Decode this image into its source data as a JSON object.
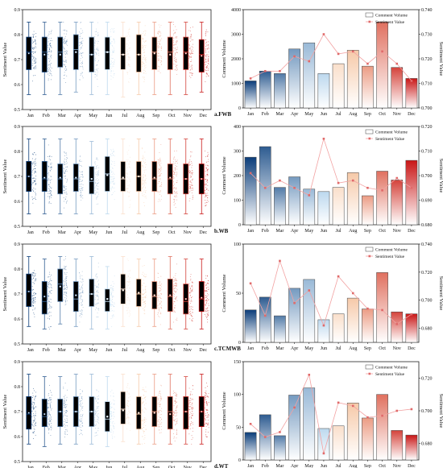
{
  "colors": {
    "blue_dark": "#0b3d7a",
    "blue_light": "#bcd8ee",
    "peach": "#f6c9a8",
    "red_dark": "#c91616",
    "red_light": "#f4b5b0",
    "sentiment_line": "#f2a2a2",
    "sentiment_marker": "#e06a6a",
    "bar_outline": "#444444"
  },
  "months": [
    "Jan",
    "Feb",
    "Mar",
    "Apr",
    "May",
    "Jun",
    "Jul",
    "Aug",
    "Sep",
    "Oct",
    "Nov",
    "Dec"
  ],
  "box_ylabel": "Sentiment Value",
  "volume_ylabel": "Comment Volume",
  "sentiment_ylabel": "Sentiment Value",
  "legend": {
    "volume": "Comment Volume",
    "sentiment": "Sentiment Value"
  },
  "chart_data": [
    {
      "type": "box",
      "ylabel": "Sentiment Value",
      "ylim": [
        0.5,
        0.9
      ],
      "yticks": [
        0.5,
        0.6,
        0.7,
        0.8,
        0.9
      ],
      "categories": [
        "Jan",
        "Feb",
        "Mar",
        "Apr",
        "May",
        "Jun",
        "Jul",
        "Aug",
        "Sep",
        "Oct",
        "Nov",
        "Dec"
      ],
      "boxes": [
        {
          "min": 0.56,
          "q1": 0.66,
          "median": 0.73,
          "q3": 0.79,
          "max": 0.85,
          "mean": 0.725
        },
        {
          "min": 0.56,
          "q1": 0.65,
          "median": 0.73,
          "q3": 0.79,
          "max": 0.85,
          "mean": 0.72
        },
        {
          "min": 0.56,
          "q1": 0.67,
          "median": 0.73,
          "q3": 0.79,
          "max": 0.85,
          "mean": 0.72
        },
        {
          "min": 0.57,
          "q1": 0.66,
          "median": 0.74,
          "q3": 0.8,
          "max": 0.85,
          "mean": 0.73
        },
        {
          "min": 0.56,
          "q1": 0.65,
          "median": 0.72,
          "q3": 0.79,
          "max": 0.85,
          "mean": 0.72
        },
        {
          "min": 0.56,
          "q1": 0.66,
          "median": 0.73,
          "q3": 0.79,
          "max": 0.85,
          "mean": 0.73
        },
        {
          "min": 0.55,
          "q1": 0.66,
          "median": 0.72,
          "q3": 0.79,
          "max": 0.85,
          "mean": 0.72
        },
        {
          "min": 0.56,
          "q1": 0.65,
          "median": 0.72,
          "q3": 0.8,
          "max": 0.85,
          "mean": 0.72
        },
        {
          "min": 0.56,
          "q1": 0.66,
          "median": 0.73,
          "q3": 0.79,
          "max": 0.85,
          "mean": 0.725
        },
        {
          "min": 0.56,
          "q1": 0.66,
          "median": 0.73,
          "q3": 0.79,
          "max": 0.85,
          "mean": 0.72
        },
        {
          "min": 0.56,
          "q1": 0.66,
          "median": 0.73,
          "q3": 0.79,
          "max": 0.85,
          "mean": 0.725
        },
        {
          "min": 0.57,
          "q1": 0.65,
          "median": 0.72,
          "q3": 0.78,
          "max": 0.85,
          "mean": 0.715
        }
      ]
    },
    {
      "type": "bar+line",
      "panel_label": "a.FWB",
      "categories": [
        "Jan",
        "Feb",
        "Mar",
        "Apr",
        "May",
        "Jun",
        "Jul",
        "Aug",
        "Sep",
        "Oct",
        "Nov",
        "Dec"
      ],
      "volume_values": [
        1100,
        1500,
        1400,
        2400,
        2650,
        1400,
        1800,
        2350,
        1700,
        3500,
        1650,
        1200
      ],
      "sentiment_values": [
        0.712,
        0.715,
        0.715,
        0.721,
        0.719,
        0.73,
        0.722,
        0.723,
        0.718,
        0.723,
        0.718,
        0.711
      ],
      "ylim_left": [
        0,
        4000
      ],
      "yticks_left": [
        0,
        1000,
        2000,
        3000,
        4000
      ],
      "ylim_right": [
        0.7,
        0.74
      ],
      "yticks_right": [
        "0.700",
        "0.710",
        "0.720",
        "0.730",
        "0.740"
      ],
      "ylabel_left": "Comment Volume",
      "ylabel_right": "Sentiment Value"
    },
    {
      "type": "box",
      "ylabel": "Sentiment Value",
      "ylim": [
        0.5,
        0.9
      ],
      "yticks": [
        0.5,
        0.6,
        0.7,
        0.8,
        0.9
      ],
      "categories": [
        "Jan",
        "Feb",
        "Mar",
        "Apr",
        "May",
        "Jun",
        "Jul",
        "Aug",
        "Sep",
        "Oct",
        "Nov",
        "Dec"
      ],
      "boxes": [
        {
          "min": 0.55,
          "q1": 0.64,
          "median": 0.7,
          "q3": 0.76,
          "max": 0.85,
          "mean": 0.7
        },
        {
          "min": 0.55,
          "q1": 0.64,
          "median": 0.69,
          "q3": 0.76,
          "max": 0.85,
          "mean": 0.695
        },
        {
          "min": 0.55,
          "q1": 0.63,
          "median": 0.69,
          "q3": 0.75,
          "max": 0.85,
          "mean": 0.695
        },
        {
          "min": 0.55,
          "q1": 0.64,
          "median": 0.69,
          "q3": 0.75,
          "max": 0.85,
          "mean": 0.695
        },
        {
          "min": 0.55,
          "q1": 0.63,
          "median": 0.68,
          "q3": 0.74,
          "max": 0.84,
          "mean": 0.69
        },
        {
          "min": 0.55,
          "q1": 0.64,
          "median": 0.71,
          "q3": 0.78,
          "max": 0.85,
          "mean": 0.705
        },
        {
          "min": 0.55,
          "q1": 0.64,
          "median": 0.69,
          "q3": 0.76,
          "max": 0.85,
          "mean": 0.695
        },
        {
          "min": 0.55,
          "q1": 0.64,
          "median": 0.7,
          "q3": 0.76,
          "max": 0.85,
          "mean": 0.7
        },
        {
          "min": 0.55,
          "q1": 0.64,
          "median": 0.69,
          "q3": 0.76,
          "max": 0.85,
          "mean": 0.695
        },
        {
          "min": 0.55,
          "q1": 0.63,
          "median": 0.69,
          "q3": 0.75,
          "max": 0.85,
          "mean": 0.695
        },
        {
          "min": 0.55,
          "q1": 0.63,
          "median": 0.69,
          "q3": 0.75,
          "max": 0.85,
          "mean": 0.69
        },
        {
          "min": 0.55,
          "q1": 0.63,
          "median": 0.69,
          "q3": 0.75,
          "max": 0.85,
          "mean": 0.69
        }
      ]
    },
    {
      "type": "bar+line",
      "panel_label": "b.WB",
      "categories": [
        "Jan",
        "Feb",
        "Mar",
        "Apr",
        "May",
        "Jun",
        "Jul",
        "Aug",
        "Sep",
        "Oct",
        "Nov",
        "Dec"
      ],
      "volume_values": [
        275,
        318,
        152,
        195,
        145,
        135,
        152,
        212,
        118,
        218,
        182,
        262
      ],
      "sentiment_values": [
        0.701,
        0.695,
        0.698,
        0.695,
        0.692,
        0.715,
        0.697,
        0.698,
        0.695,
        0.694,
        0.699,
        0.695
      ],
      "ylim_left": [
        0,
        400
      ],
      "yticks_left": [
        0,
        100,
        200,
        300,
        400
      ],
      "ylim_right": [
        0.68,
        0.72
      ],
      "yticks_right": [
        "0.680",
        "0.690",
        "0.700",
        "0.710",
        "0.720"
      ],
      "ylabel_left": "Comment Volume",
      "ylabel_right": "Sentiment Value"
    },
    {
      "type": "box",
      "ylabel": "Sentiment Value",
      "ylim": [
        0.5,
        0.9
      ],
      "yticks": [
        0.5,
        0.6,
        0.7,
        0.8,
        0.9
      ],
      "categories": [
        "Jan",
        "Feb",
        "Mar",
        "Apr",
        "May",
        "Jun",
        "Jul",
        "Aug",
        "Sep",
        "Oct",
        "Nov",
        "Dec"
      ],
      "boxes": [
        {
          "min": 0.57,
          "q1": 0.65,
          "median": 0.71,
          "q3": 0.78,
          "max": 0.85,
          "mean": 0.71
        },
        {
          "min": 0.56,
          "q1": 0.62,
          "median": 0.67,
          "q3": 0.75,
          "max": 0.84,
          "mean": 0.69
        },
        {
          "min": 0.58,
          "q1": 0.67,
          "median": 0.74,
          "q3": 0.8,
          "max": 0.85,
          "mean": 0.73
        },
        {
          "min": 0.57,
          "q1": 0.63,
          "median": 0.68,
          "q3": 0.75,
          "max": 0.84,
          "mean": 0.695
        },
        {
          "min": 0.56,
          "q1": 0.65,
          "median": 0.7,
          "q3": 0.76,
          "max": 0.85,
          "mean": 0.7
        },
        {
          "min": 0.56,
          "q1": 0.63,
          "median": 0.67,
          "q3": 0.72,
          "max": 0.81,
          "mean": 0.68
        },
        {
          "min": 0.57,
          "q1": 0.66,
          "median": 0.72,
          "q3": 0.78,
          "max": 0.85,
          "mean": 0.715
        },
        {
          "min": 0.57,
          "q1": 0.65,
          "median": 0.7,
          "q3": 0.76,
          "max": 0.84,
          "mean": 0.705
        },
        {
          "min": 0.57,
          "q1": 0.64,
          "median": 0.69,
          "q3": 0.75,
          "max": 0.84,
          "mean": 0.695
        },
        {
          "min": 0.56,
          "q1": 0.63,
          "median": 0.69,
          "q3": 0.76,
          "max": 0.85,
          "mean": 0.695
        },
        {
          "min": 0.56,
          "q1": 0.62,
          "median": 0.67,
          "q3": 0.74,
          "max": 0.84,
          "mean": 0.68
        },
        {
          "min": 0.56,
          "q1": 0.63,
          "median": 0.68,
          "q3": 0.75,
          "max": 0.84,
          "mean": 0.685
        }
      ]
    },
    {
      "type": "bar+line",
      "panel_label": "c.TCMWB",
      "categories": [
        "Jan",
        "Feb",
        "Mar",
        "Apr",
        "May",
        "Jun",
        "Jul",
        "Aug",
        "Sep",
        "Oct",
        "Nov",
        "Dec"
      ],
      "volume_values": [
        33,
        46,
        27,
        55,
        64,
        23,
        29,
        45,
        34,
        71,
        31,
        29
      ],
      "sentiment_values": [
        0.712,
        0.689,
        0.728,
        0.698,
        0.707,
        0.682,
        0.717,
        0.705,
        0.694,
        0.693,
        0.683,
        0.69
      ],
      "ylim_left": [
        0,
        100
      ],
      "yticks_left": [
        0,
        50,
        100
      ],
      "ylim_right": [
        0.67,
        0.74
      ],
      "yticks_right": [
        "0.680",
        "0.700",
        "0.720",
        "0.740"
      ],
      "ylabel_left": "Comment Volume",
      "ylabel_right": "Sentiment Value"
    },
    {
      "type": "box",
      "ylabel": "Sentiment Value",
      "ylim": [
        0.5,
        0.9
      ],
      "yticks": [
        0.5,
        0.6,
        0.7,
        0.8,
        0.9
      ],
      "categories": [
        "Jan",
        "Feb",
        "Mar",
        "Apr",
        "May",
        "Jun",
        "Jul",
        "Aug",
        "Sep",
        "Oct",
        "Nov",
        "Dec"
      ],
      "boxes": [
        {
          "min": 0.57,
          "q1": 0.63,
          "median": 0.69,
          "q3": 0.76,
          "max": 0.85,
          "mean": 0.695
        },
        {
          "min": 0.56,
          "q1": 0.64,
          "median": 0.68,
          "q3": 0.75,
          "max": 0.84,
          "mean": 0.69
        },
        {
          "min": 0.57,
          "q1": 0.64,
          "median": 0.7,
          "q3": 0.75,
          "max": 0.84,
          "mean": 0.7
        },
        {
          "min": 0.57,
          "q1": 0.64,
          "median": 0.7,
          "q3": 0.76,
          "max": 0.85,
          "mean": 0.7
        },
        {
          "min": 0.57,
          "q1": 0.64,
          "median": 0.7,
          "q3": 0.76,
          "max": 0.85,
          "mean": 0.7
        },
        {
          "min": 0.56,
          "q1": 0.62,
          "median": 0.67,
          "q3": 0.74,
          "max": 0.84,
          "mean": 0.68
        },
        {
          "min": 0.58,
          "q1": 0.65,
          "median": 0.71,
          "q3": 0.78,
          "max": 0.85,
          "mean": 0.705
        },
        {
          "min": 0.57,
          "q1": 0.63,
          "median": 0.69,
          "q3": 0.76,
          "max": 0.85,
          "mean": 0.695
        },
        {
          "min": 0.57,
          "q1": 0.64,
          "median": 0.7,
          "q3": 0.76,
          "max": 0.85,
          "mean": 0.695
        },
        {
          "min": 0.57,
          "q1": 0.63,
          "median": 0.7,
          "q3": 0.76,
          "max": 0.85,
          "mean": 0.69
        },
        {
          "min": 0.57,
          "q1": 0.63,
          "median": 0.7,
          "q3": 0.76,
          "max": 0.84,
          "mean": 0.7
        },
        {
          "min": 0.57,
          "q1": 0.64,
          "median": 0.7,
          "q3": 0.76,
          "max": 0.85,
          "mean": 0.7
        }
      ]
    },
    {
      "type": "bar+line",
      "panel_label": "d.WT",
      "categories": [
        "Jan",
        "Feb",
        "Mar",
        "Apr",
        "May",
        "Jun",
        "Jul",
        "Aug",
        "Sep",
        "Oct",
        "Nov",
        "Dec"
      ],
      "volume_values": [
        42,
        69,
        37,
        99,
        110,
        48,
        52,
        87,
        64,
        100,
        45,
        38
      ],
      "sentiment_values": [
        0.692,
        0.684,
        0.687,
        0.702,
        0.722,
        0.674,
        0.705,
        0.703,
        0.696,
        0.697,
        0.7,
        0.701
      ],
      "ylim_left": [
        0,
        150
      ],
      "yticks_left": [
        0,
        50,
        100,
        150
      ],
      "ylim_right": [
        0.67,
        0.73
      ],
      "yticks_right": [
        "0.680",
        "0.700",
        "0.720"
      ],
      "ylabel_left": "Comment Volume",
      "ylabel_right": "Sentiment Value"
    }
  ]
}
